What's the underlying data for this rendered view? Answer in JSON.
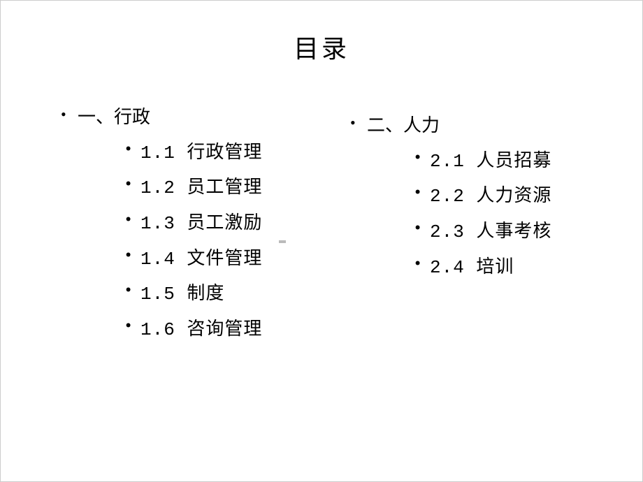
{
  "title": "目录",
  "left_column": {
    "heading": "一、行政",
    "items": [
      "1.1 行政管理",
      "1.2 员工管理",
      "1.3 员工激励",
      "1.4 文件管理",
      "1.5 制度",
      "1.6 咨询管理"
    ]
  },
  "right_column": {
    "heading": "二、人力",
    "items": [
      "2.1 人员招募",
      "2.2 人力资源",
      "2.3 人事考核",
      "2.4 培训"
    ]
  },
  "colors": {
    "background": "#ffffff",
    "text": "#000000",
    "border": "#cccccc"
  },
  "typography": {
    "title_fontsize": 36,
    "body_fontsize": 26,
    "font_family": "SimSun"
  }
}
